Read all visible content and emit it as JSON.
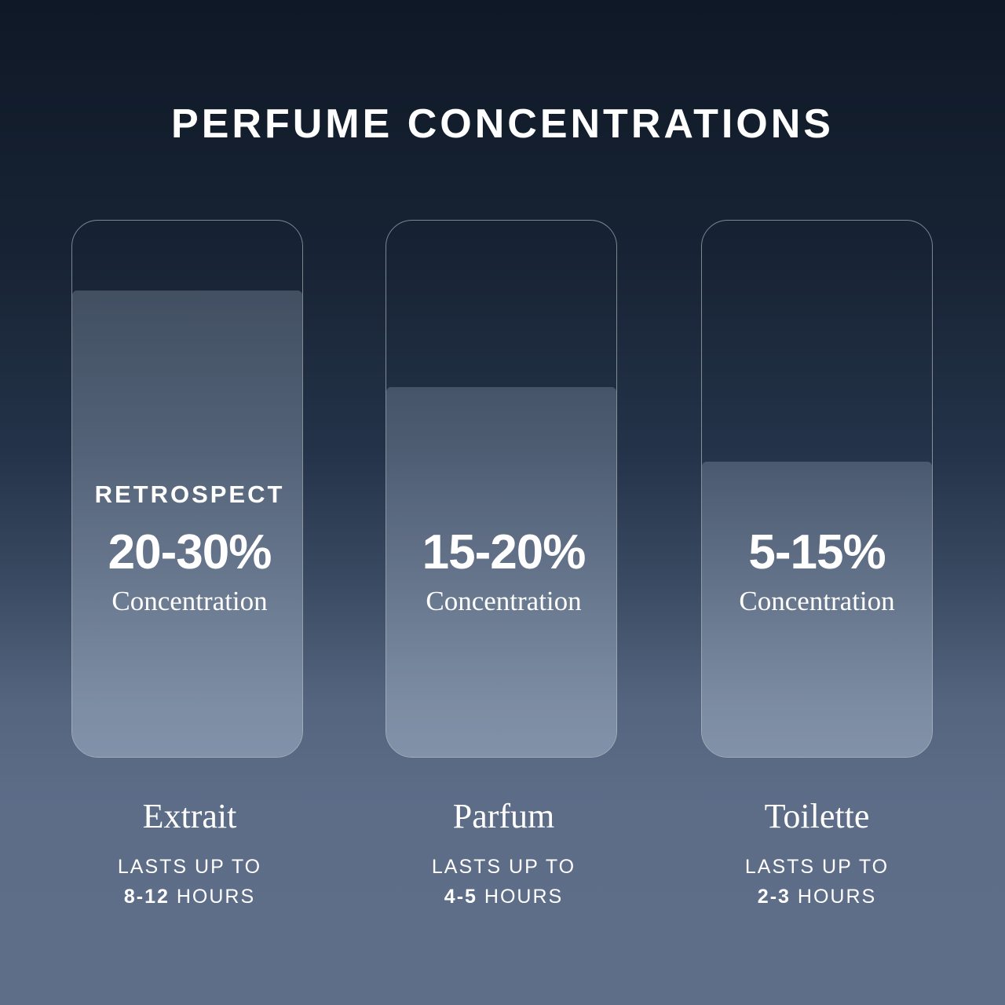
{
  "title": "PERFUME CONCENTRATIONS",
  "colors": {
    "background_top": "#0f1826",
    "background_bottom": "#5e6e89",
    "text": "#ffffff"
  },
  "cards": [
    {
      "brand": "RETROSPECT",
      "percent": "20-30%",
      "concentration_label": "Concentration",
      "fill_level": 0.87,
      "name": "Extrait",
      "lasts_label": "LASTS UP TO",
      "hours_value": "8-12",
      "hours_unit": "HOURS"
    },
    {
      "brand": "",
      "percent": "15-20%",
      "concentration_label": "Concentration",
      "fill_level": 0.69,
      "name": "Parfum",
      "lasts_label": "LASTS UP TO",
      "hours_value": "4-5",
      "hours_unit": "HOURS"
    },
    {
      "brand": "",
      "percent": "5-15%",
      "concentration_label": "Concentration",
      "fill_level": 0.55,
      "name": "Toilette",
      "lasts_label": "LASTS UP TO",
      "hours_value": "2-3",
      "hours_unit": "HOURS"
    }
  ]
}
